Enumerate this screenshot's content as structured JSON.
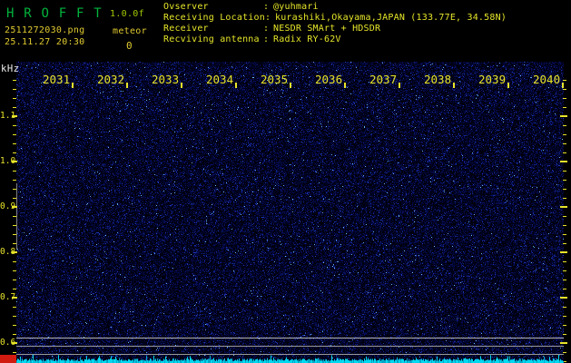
{
  "app": {
    "title": "H R O F F T",
    "version": "1.0.0f",
    "filename": "2511272030.png",
    "mode": "meteor",
    "datetime": "25.11.27 20:30",
    "echo_count": "0"
  },
  "info": {
    "separator": ":",
    "rows": [
      {
        "label": "Ovserver",
        "value": "@yuhmari"
      },
      {
        "label": "Receiving Location",
        "value": "kurashiki,Okayama,JAPAN (133.77E, 34.58N)"
      },
      {
        "label": "Receiver",
        "value": "NESDR SMArt + HDSDR"
      },
      {
        "label": "Recviving antenna",
        "value": "Radix RY-62V"
      }
    ]
  },
  "spectrogram": {
    "y_axis_unit": "kHz",
    "time_labels": [
      "2031",
      "2032",
      "2033",
      "2034",
      "2035",
      "2036",
      "2037",
      "2038",
      "2039",
      "2040"
    ],
    "freq_labels": [
      "1.1",
      "1.0",
      "0.9",
      "0.8",
      "0.7",
      "0.6"
    ],
    "freq_range_khz": [
      0.6,
      1.1
    ],
    "time_span_minutes": 10
  },
  "colors": {
    "title_green": "#00b43c",
    "version_green": "#a0c800",
    "yellow": "#e0ca2f",
    "info_yellow": "#e5e52a",
    "axis_yellow": "#e8e42a",
    "khz_white": "#f2f2f2",
    "grid_gray_bright": "#b4b4b4",
    "grid_gray": "#9a9a9a",
    "vline_gray": "#808080",
    "level_cyan": "#00d8f0",
    "level_cyan_dim": "#00a8c8",
    "level_red": "#d21b10"
  }
}
